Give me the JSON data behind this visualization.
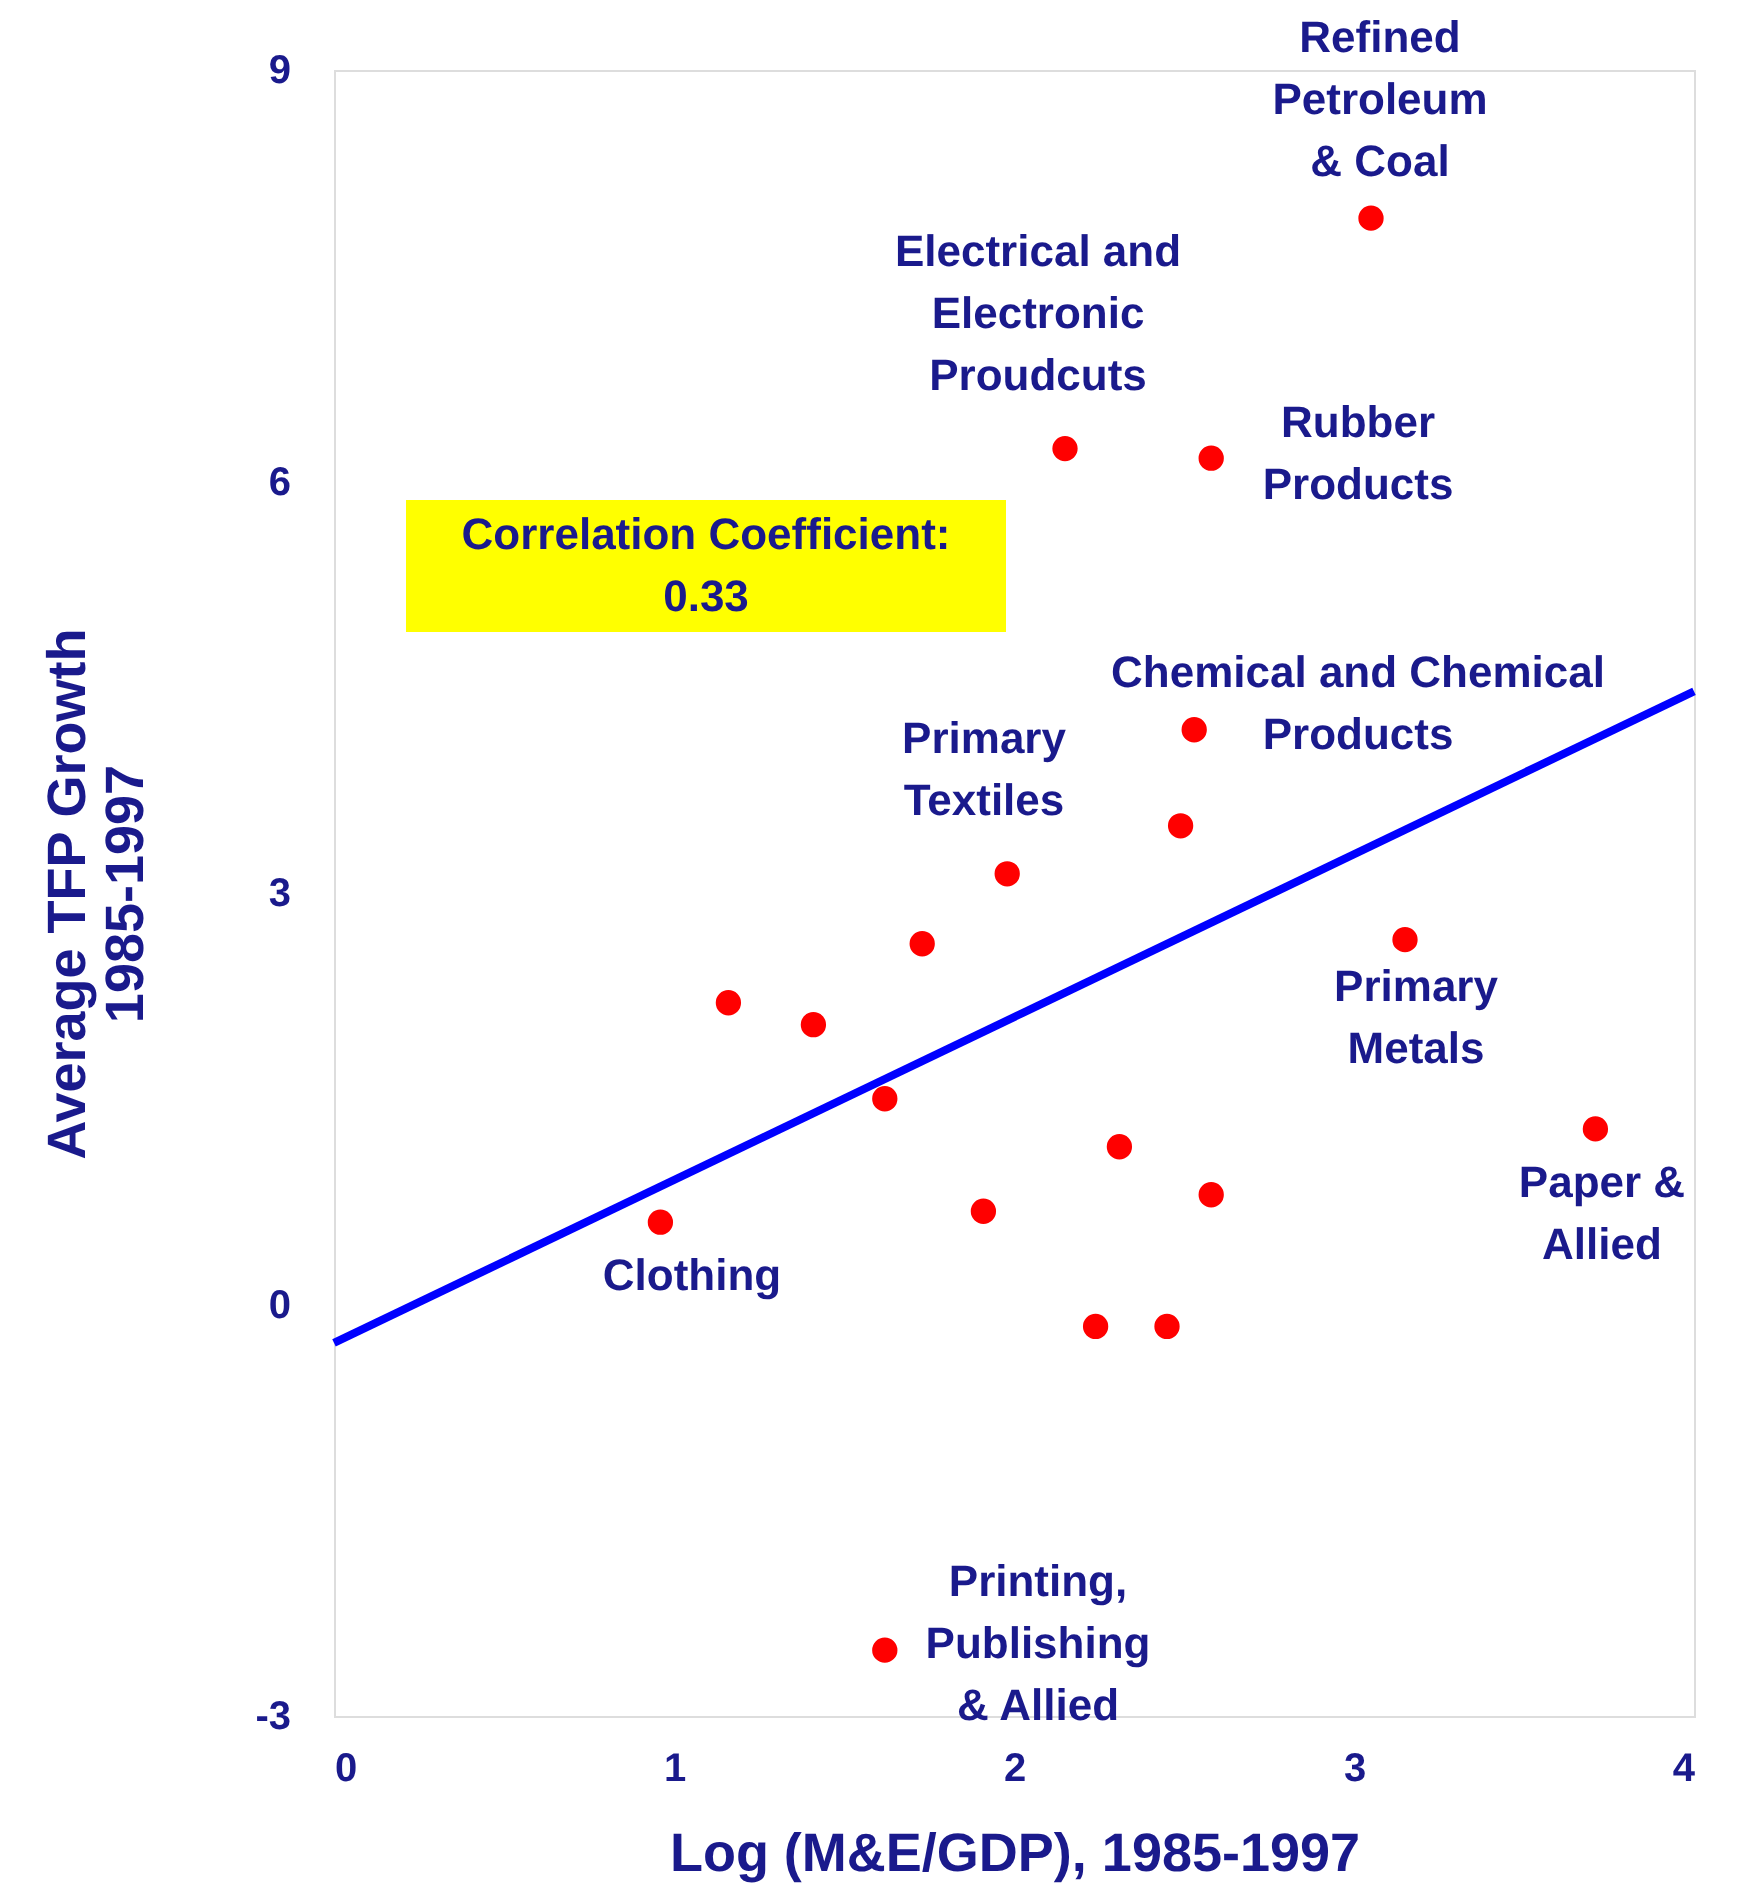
{
  "chart_data": {
    "type": "scatter",
    "xlabel": "Log (M&E/GDP), 1985-1997",
    "ylabel": "Average TFP Growth\n1985-1997",
    "xlim": [
      0,
      4
    ],
    "xticks": [
      0,
      1,
      2,
      3,
      4
    ],
    "ylim": [
      -3,
      9
    ],
    "yticks": [
      -3,
      0,
      3,
      6,
      9
    ],
    "series": [
      {
        "color": "#ff0000",
        "marker": "circle",
        "x": [
          3.05,
          2.15,
          2.58,
          2.53,
          2.49,
          1.98,
          1.73,
          1.16,
          1.41,
          1.62,
          3.15,
          3.71,
          2.31,
          2.58,
          1.91,
          0.96,
          2.24,
          2.45,
          1.62
        ],
        "values": [
          7.92,
          6.24,
          6.17,
          4.19,
          3.49,
          3.14,
          2.63,
          2.2,
          2.04,
          1.5,
          2.66,
          1.28,
          1.15,
          0.8,
          0.68,
          0.6,
          -0.16,
          -0.16,
          -2.52
        ]
      },
      {
        "type": "line",
        "color": "#0000ff",
        "x": [
          0,
          4
        ],
        "values": [
          -0.28,
          4.47
        ]
      }
    ],
    "annotations": [
      "Correlation Coefficient:\n0.33",
      "Refined\nPetroleum\n& Coal",
      "Electrical and\nElectronic\nProudcuts",
      "Rubber\nProducts",
      "Chemical and Chemical\nProducts",
      "Primary\nTextiles",
      "Primary\nMetals",
      "Paper &\nAllied",
      "Clothing",
      "Printing,\nPublishing\n& Allied"
    ]
  }
}
